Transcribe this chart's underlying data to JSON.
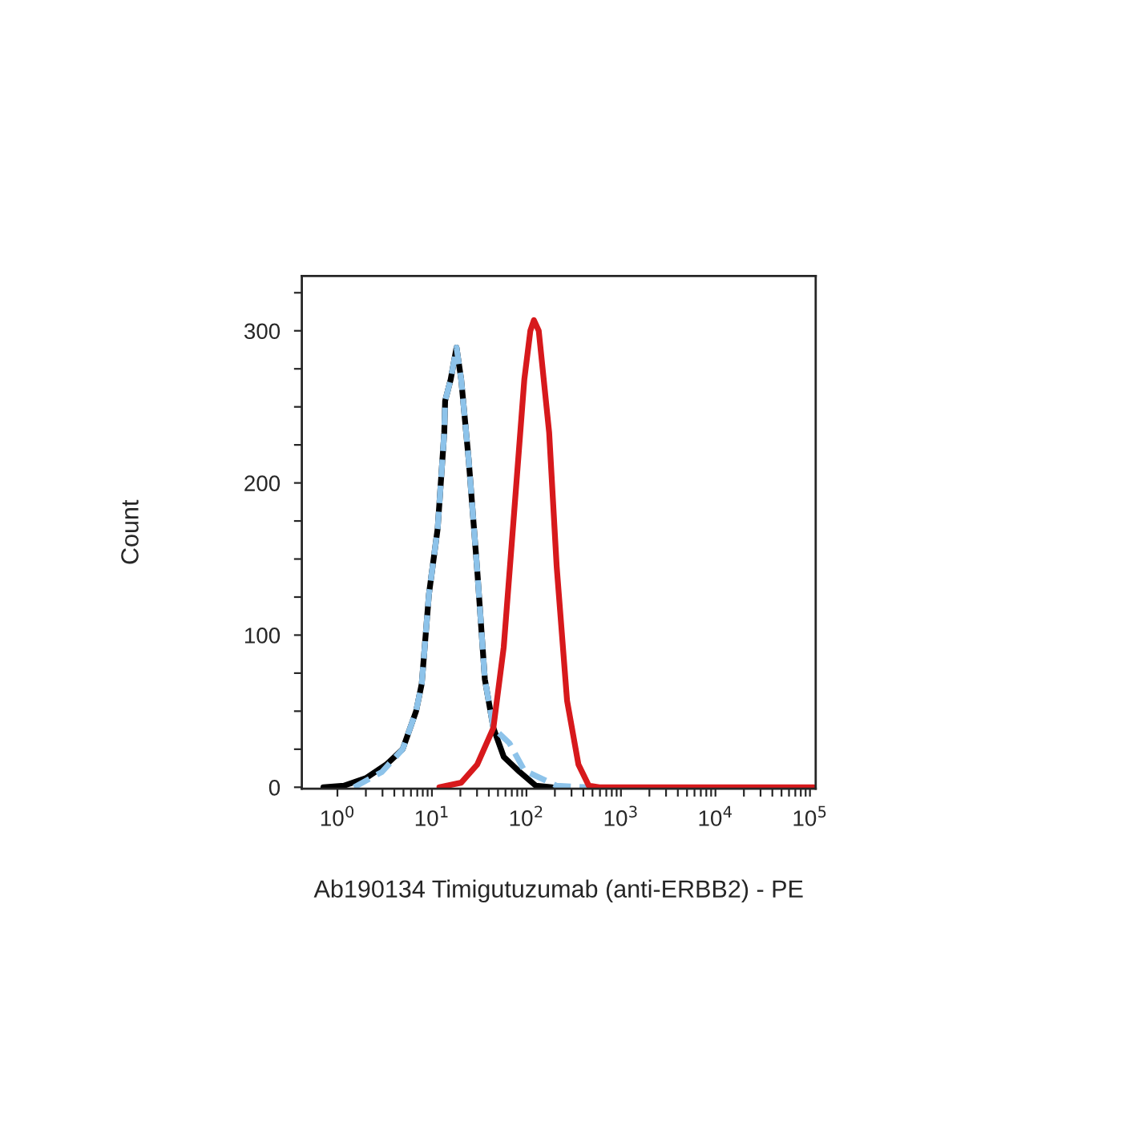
{
  "chart_data": {
    "type": "line",
    "xlabel": "Ab190134 Timigutuzumab (anti-ERBB2) - PE",
    "ylabel": "Count",
    "log": "x",
    "grid": false,
    "legend": false,
    "xlim": [
      0.42,
      115000
    ],
    "ylim": [
      -1,
      336
    ],
    "xticks": [
      {
        "value": 1,
        "label": "10$^{0}$"
      },
      {
        "value": 10,
        "label": "10$^{1}$"
      },
      {
        "value": 100,
        "label": "10$^{2}$"
      },
      {
        "value": 1000,
        "label": "10$^{3}$"
      },
      {
        "value": 10000,
        "label": "10$^{4}$"
      },
      {
        "value": 100000,
        "label": "10$^{5}$"
      },
      {
        "value": 2,
        "label": null
      },
      {
        "value": 3,
        "label": null
      },
      {
        "value": 4,
        "label": null
      },
      {
        "value": 5,
        "label": null
      },
      {
        "value": 6,
        "label": null
      },
      {
        "value": 7,
        "label": null
      },
      {
        "value": 8,
        "label": null
      },
      {
        "value": 9,
        "label": null
      },
      {
        "value": 20,
        "label": null
      },
      {
        "value": 30,
        "label": null
      },
      {
        "value": 40,
        "label": null
      },
      {
        "value": 50,
        "label": null
      },
      {
        "value": 60,
        "label": null
      },
      {
        "value": 70,
        "label": null
      },
      {
        "value": 80,
        "label": null
      },
      {
        "value": 90,
        "label": null
      },
      {
        "value": 200,
        "label": null
      },
      {
        "value": 300,
        "label": null
      },
      {
        "value": 400,
        "label": null
      },
      {
        "value": 500,
        "label": null
      },
      {
        "value": 600,
        "label": null
      },
      {
        "value": 700,
        "label": null
      },
      {
        "value": 800,
        "label": null
      },
      {
        "value": 900,
        "label": null
      },
      {
        "value": 2000,
        "label": null
      },
      {
        "value": 3000,
        "label": null
      },
      {
        "value": 4000,
        "label": null
      },
      {
        "value": 5000,
        "label": null
      },
      {
        "value": 6000,
        "label": null
      },
      {
        "value": 7000,
        "label": null
      },
      {
        "value": 8000,
        "label": null
      },
      {
        "value": 9000,
        "label": null
      },
      {
        "value": 20000,
        "label": null
      },
      {
        "value": 30000,
        "label": null
      },
      {
        "value": 40000,
        "label": null
      },
      {
        "value": 50000,
        "label": null
      },
      {
        "value": 60000,
        "label": null
      },
      {
        "value": 70000,
        "label": null
      },
      {
        "value": 80000,
        "label": null
      },
      {
        "value": 90000,
        "label": null
      }
    ],
    "yticks": [
      0,
      100,
      200,
      300,
      {
        "value": 25,
        "label": null
      },
      {
        "value": 50,
        "label": null
      },
      {
        "value": 75,
        "label": null
      },
      {
        "value": 125,
        "label": null
      },
      {
        "value": 150,
        "label": null
      },
      {
        "value": 175,
        "label": null
      },
      {
        "value": 225,
        "label": null
      },
      {
        "value": 250,
        "label": null
      },
      {
        "value": 275,
        "label": null
      },
      {
        "value": 325,
        "label": null
      }
    ],
    "series": [
      {
        "color": "#000000",
        "line_style": "solid",
        "x": [
          0.71,
          1.17,
          2.0,
          3.3,
          4.9,
          6.8,
          7.8,
          9.3,
          11.5,
          13.5,
          13.8,
          15.8,
          18.2,
          20.4,
          24.5,
          30.2,
          36.3,
          44.7,
          57.5,
          85,
          126,
          186
        ],
        "values": [
          0,
          1,
          6,
          15,
          25,
          50,
          68,
          127,
          170,
          233,
          254,
          268,
          289,
          268,
          215,
          142,
          71,
          39,
          20,
          10,
          1,
          0
        ]
      },
      {
        "color": "#8dc3ea",
        "line_style": "dashed",
        "x": [
          1.5,
          2.95,
          4.9,
          6.8,
          7.8,
          9.3,
          11.5,
          13.5,
          13.8,
          15.8,
          18.2,
          20.4,
          24.5,
          30.2,
          36.3,
          44.7,
          66,
          95,
          209,
          457
        ],
        "values": [
          0,
          10,
          25,
          50,
          68,
          127,
          170,
          233,
          254,
          268,
          289,
          268,
          215,
          142,
          71,
          39,
          29,
          11,
          1,
          0
        ]
      },
      {
        "color": "#d7191c",
        "line_style": "solid",
        "x": [
          12,
          20.4,
          30.2,
          44.7,
          57.5,
          74,
          95,
          110,
          120,
          135,
          174,
          209,
          269,
          355,
          457,
          589,
          110000
        ],
        "values": [
          0,
          3,
          15,
          39,
          92,
          180,
          268,
          300,
          307,
          300,
          233,
          145,
          57,
          15,
          1,
          0,
          0
        ]
      }
    ]
  }
}
